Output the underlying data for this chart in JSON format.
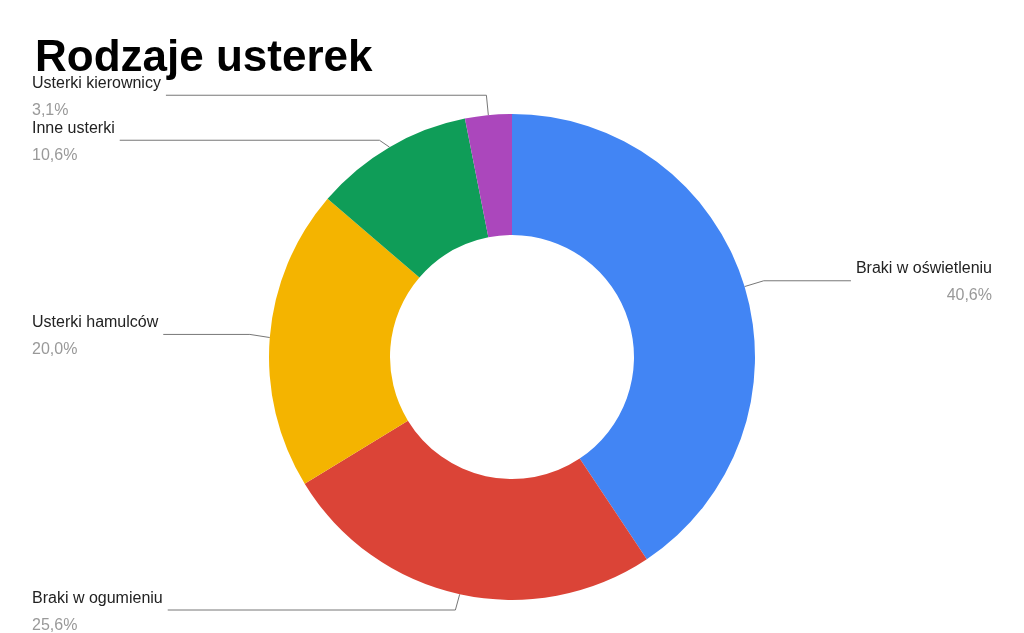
{
  "chart_data": {
    "type": "donut",
    "title": "Rodzaje usterek",
    "categories": [
      "Braki w oświetleniu",
      "Braki w ogumieniu",
      "Usterki hamulców",
      "Inne usterki",
      "Usterki kierownicy"
    ],
    "values": [
      40.6,
      25.6,
      20.0,
      10.6,
      3.1
    ],
    "value_labels": [
      "40,6%",
      "25,6%",
      "20,0%",
      "10,6%",
      "3,1%"
    ],
    "colors": [
      "#4285f4",
      "#db4437",
      "#f4b400",
      "#0f9d58",
      "#ab47bc"
    ],
    "legend": false
  }
}
